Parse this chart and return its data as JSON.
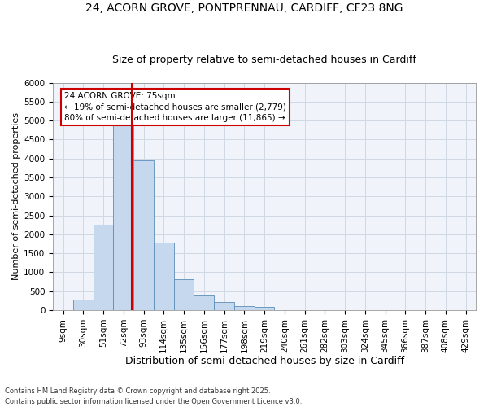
{
  "title1": "24, ACORN GROVE, PONTPRENNAU, CARDIFF, CF23 8NG",
  "title2": "Size of property relative to semi-detached houses in Cardiff",
  "xlabel": "Distribution of semi-detached houses by size in Cardiff",
  "ylabel": "Number of semi-detached properties",
  "footer": "Contains HM Land Registry data © Crown copyright and database right 2025.\nContains public sector information licensed under the Open Government Licence v3.0.",
  "categories": [
    "9sqm",
    "30sqm",
    "51sqm",
    "72sqm",
    "93sqm",
    "114sqm",
    "135sqm",
    "156sqm",
    "177sqm",
    "198sqm",
    "219sqm",
    "240sqm",
    "261sqm",
    "282sqm",
    "303sqm",
    "324sqm",
    "345sqm",
    "366sqm",
    "387sqm",
    "408sqm",
    "429sqm"
  ],
  "values": [
    0,
    270,
    2250,
    4950,
    3950,
    1780,
    820,
    390,
    215,
    115,
    75,
    5,
    5,
    0,
    0,
    0,
    0,
    0,
    0,
    0,
    0
  ],
  "bar_color": "#c6d8ee",
  "bar_edge_color": "#5b8db8",
  "red_line_color": "#cc0000",
  "annotation_text": "24 ACORN GROVE: 75sqm\n← 19% of semi-detached houses are smaller (2,779)\n80% of semi-detached houses are larger (11,865) →",
  "annotation_box_color": "#cc0000",
  "ylim": [
    0,
    6000
  ],
  "yticks": [
    0,
    500,
    1000,
    1500,
    2000,
    2500,
    3000,
    3500,
    4000,
    4500,
    5000,
    5500,
    6000
  ],
  "grid_color": "#d0d8e4",
  "background_color": "#ffffff",
  "plot_bg_color": "#f0f4fa",
  "title1_fontsize": 10,
  "title2_fontsize": 9,
  "xlabel_fontsize": 9,
  "ylabel_fontsize": 8,
  "tick_fontsize": 7.5,
  "annotation_fontsize": 7.5,
  "footer_fontsize": 6,
  "line_x_index": 3.42
}
